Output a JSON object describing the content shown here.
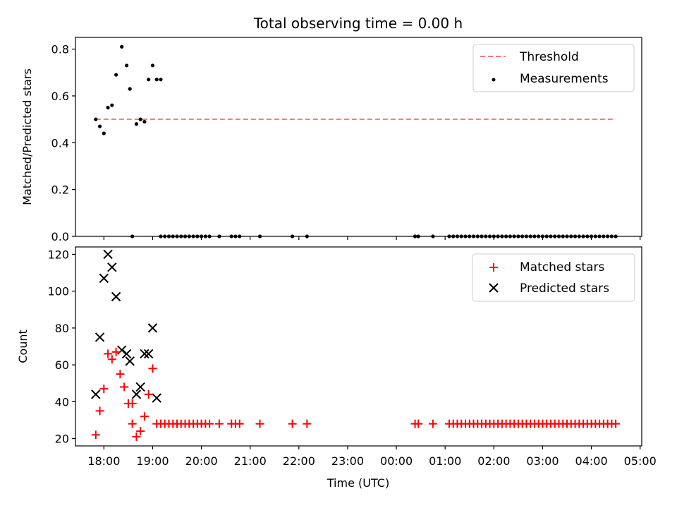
{
  "chart_data": [
    {
      "type": "scatter",
      "title": "Total observing time = 0.00 h",
      "ylabel": "Matched/Predicted stars",
      "ylim": [
        0,
        0.85
      ],
      "yticks": [
        0.0,
        0.2,
        0.4,
        0.6,
        0.8
      ],
      "ytick_labels": [
        "0.0",
        "0.2",
        "0.4",
        "0.6",
        "0.8"
      ],
      "legend_position": "top-right",
      "threshold": {
        "name": "Threshold",
        "value": 0.5,
        "x_range": [
          "17:50",
          "04:30"
        ],
        "color": "#ff7777"
      },
      "series": [
        {
          "name": "Measurements",
          "color": "#000000",
          "x": [
            "17:50",
            "17:55",
            "18:00",
            "18:05",
            "18:10",
            "18:15",
            "18:22",
            "18:28",
            "18:32",
            "18:40",
            "18:45",
            "18:50",
            "18:55",
            "19:00",
            "19:05",
            "19:10",
            "18:35",
            "19:10",
            "19:15",
            "19:20",
            "19:25",
            "19:30",
            "19:35",
            "19:40",
            "19:45",
            "19:50",
            "19:55",
            "20:00",
            "20:05",
            "20:10",
            "20:22",
            "20:37",
            "20:42",
            "20:47",
            "21:12",
            "21:52",
            "22:10",
            "00:23",
            "00:27",
            "00:45",
            "01:05",
            "01:10",
            "01:15",
            "01:20",
            "01:25",
            "01:30",
            "01:35",
            "01:40",
            "01:45",
            "01:50",
            "01:55",
            "02:00",
            "02:05",
            "02:10",
            "02:15",
            "02:20",
            "02:25",
            "02:30",
            "02:35",
            "02:40",
            "02:45",
            "02:50",
            "02:55",
            "03:00",
            "03:05",
            "03:10",
            "03:15",
            "03:20",
            "03:25",
            "03:30",
            "03:35",
            "03:40",
            "03:45",
            "03:50",
            "03:55",
            "04:00",
            "04:05",
            "04:10",
            "04:15",
            "04:20",
            "04:25",
            "04:30"
          ],
          "y": [
            0.5,
            0.47,
            0.44,
            0.55,
            0.56,
            0.69,
            0.81,
            0.73,
            0.63,
            0.48,
            0.5,
            0.49,
            0.67,
            0.73,
            0.67,
            0.67,
            0.0,
            0.0,
            0.0,
            0.0,
            0.0,
            0.0,
            0.0,
            0.0,
            0.0,
            0.0,
            0.0,
            0.0,
            0.0,
            0.0,
            0.0,
            0.0,
            0.0,
            0.0,
            0.0,
            0.0,
            0.0,
            0.0,
            0.0,
            0.0,
            0.0,
            0.0,
            0.0,
            0.0,
            0.0,
            0.0,
            0.0,
            0.0,
            0.0,
            0.0,
            0.0,
            0.0,
            0.0,
            0.0,
            0.0,
            0.0,
            0.0,
            0.0,
            0.0,
            0.0,
            0.0,
            0.0,
            0.0,
            0.0,
            0.0,
            0.0,
            0.0,
            0.0,
            0.0,
            0.0,
            0.0,
            0.0,
            0.0,
            0.0,
            0.0,
            0.0,
            0.0,
            0.0,
            0.0,
            0.0,
            0.0,
            0.0
          ]
        }
      ]
    },
    {
      "type": "scatter",
      "xlabel": "Time (UTC)",
      "ylabel": "Count",
      "ylim": [
        16,
        124
      ],
      "yticks": [
        20,
        40,
        60,
        80,
        100,
        120
      ],
      "ytick_labels": [
        "20",
        "40",
        "60",
        "80",
        "100",
        "120"
      ],
      "x_range": [
        "17:25",
        "05:02"
      ],
      "xticks": [
        "18:00",
        "19:00",
        "20:00",
        "21:00",
        "22:00",
        "23:00",
        "00:00",
        "01:00",
        "02:00",
        "03:00",
        "04:00",
        "05:00"
      ],
      "xtick_labels": [
        "18:00",
        "19:00",
        "20:00",
        "21:00",
        "22:00",
        "23:00",
        "00:00",
        "01:00",
        "02:00",
        "03:00",
        "04:00",
        "05:00"
      ],
      "legend_position": "top-right",
      "series": [
        {
          "name": "Matched stars",
          "color": "#ff0000",
          "x": [
            "17:50",
            "17:55",
            "18:00",
            "18:05",
            "18:10",
            "18:15",
            "18:20",
            "18:25",
            "18:30",
            "18:35",
            "18:40",
            "18:45",
            "18:50",
            "18:55",
            "19:00",
            "18:35",
            "19:05",
            "19:10",
            "19:15",
            "19:20",
            "19:25",
            "19:30",
            "19:35",
            "19:40",
            "19:45",
            "19:50",
            "19:55",
            "20:00",
            "20:05",
            "20:10",
            "20:22",
            "20:37",
            "20:42",
            "20:47",
            "21:12",
            "21:52",
            "22:10",
            "00:23",
            "00:27",
            "00:45",
            "01:05",
            "01:10",
            "01:15",
            "01:20",
            "01:25",
            "01:30",
            "01:35",
            "01:40",
            "01:45",
            "01:50",
            "01:55",
            "02:00",
            "02:05",
            "02:10",
            "02:15",
            "02:20",
            "02:25",
            "02:30",
            "02:35",
            "02:40",
            "02:45",
            "02:50",
            "02:55",
            "03:00",
            "03:05",
            "03:10",
            "03:15",
            "03:20",
            "03:25",
            "03:30",
            "03:35",
            "03:40",
            "03:45",
            "03:50",
            "03:55",
            "04:00",
            "04:05",
            "04:10",
            "04:15",
            "04:20",
            "04:25",
            "04:30"
          ],
          "y": [
            22,
            35,
            47,
            66,
            63,
            67,
            55,
            48,
            39,
            39,
            21,
            24,
            32,
            44,
            58,
            28,
            28,
            28,
            28,
            28,
            28,
            28,
            28,
            28,
            28,
            28,
            28,
            28,
            28,
            28,
            28,
            28,
            28,
            28,
            28,
            28,
            28,
            28,
            28,
            28,
            28,
            28,
            28,
            28,
            28,
            28,
            28,
            28,
            28,
            28,
            28,
            28,
            28,
            28,
            28,
            28,
            28,
            28,
            28,
            28,
            28,
            28,
            28,
            28,
            28,
            28,
            28,
            28,
            28,
            28,
            28,
            28,
            28,
            28,
            28,
            28,
            28,
            28,
            28,
            28,
            28,
            28
          ]
        },
        {
          "name": "Predicted stars",
          "color": "#000000",
          "x": [
            "17:50",
            "17:55",
            "18:00",
            "18:05",
            "18:10",
            "18:15",
            "18:22",
            "18:28",
            "18:32",
            "18:40",
            "18:45",
            "18:50",
            "18:55",
            "19:00",
            "19:05"
          ],
          "y": [
            44,
            75,
            107,
            120,
            113,
            97,
            68,
            66,
            62,
            44,
            48,
            66,
            66,
            80,
            42
          ]
        }
      ]
    }
  ]
}
